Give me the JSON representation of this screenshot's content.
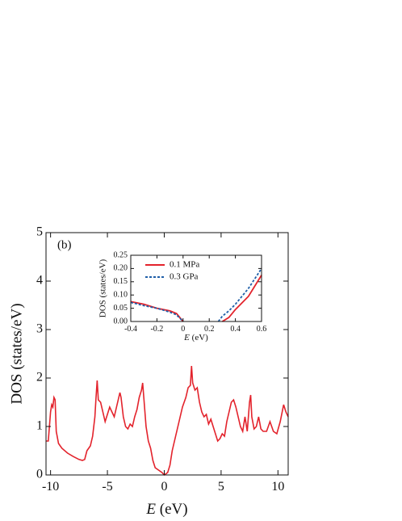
{
  "chart_data": [
    {
      "type": "line",
      "annotation": "(b)",
      "y_label": "DOS (states/eV)",
      "x_label_var": "E",
      "x_label_unit": "(eV)",
      "x": [
        -10.4,
        -10.2,
        -10.0,
        -9.9,
        -9.8,
        -9.7,
        -9.6,
        -9.5,
        -9.3,
        -9.0,
        -8.5,
        -8.0,
        -7.5,
        -7.2,
        -7.0,
        -6.8,
        -6.5,
        -6.3,
        -6.1,
        -6.0,
        -5.9,
        -5.8,
        -5.6,
        -5.4,
        -5.2,
        -5.0,
        -4.8,
        -4.6,
        -4.4,
        -4.2,
        -4.0,
        -3.9,
        -3.8,
        -3.6,
        -3.4,
        -3.2,
        -3.0,
        -2.8,
        -2.6,
        -2.4,
        -2.2,
        -2.0,
        -1.9,
        -1.8,
        -1.6,
        -1.4,
        -1.2,
        -1.0,
        -0.8,
        -0.5,
        -0.2,
        0,
        0.3,
        0.5,
        0.7,
        1.0,
        1.3,
        1.6,
        1.9,
        2.1,
        2.3,
        2.4,
        2.5,
        2.7,
        2.9,
        3.1,
        3.3,
        3.5,
        3.7,
        3.9,
        4.1,
        4.3,
        4.5,
        4.7,
        4.9,
        5.1,
        5.3,
        5.5,
        5.7,
        5.9,
        6.1,
        6.3,
        6.5,
        6.7,
        6.9,
        7.1,
        7.3,
        7.5,
        7.6,
        7.7,
        7.9,
        8.1,
        8.3,
        8.5,
        8.7,
        9.0,
        9.3,
        9.6,
        9.9,
        10.2,
        10.5,
        10.7,
        10.9
      ],
      "series": [
        {
          "color": "#e3232c",
          "linestyle": "solid",
          "values": [
            0.7,
            0.7,
            1.3,
            1.45,
            1.4,
            1.6,
            1.55,
            0.9,
            0.65,
            0.55,
            0.45,
            0.38,
            0.32,
            0.3,
            0.32,
            0.5,
            0.6,
            0.8,
            1.2,
            1.6,
            1.95,
            1.55,
            1.5,
            1.3,
            1.1,
            1.25,
            1.4,
            1.3,
            1.2,
            1.4,
            1.6,
            1.7,
            1.6,
            1.2,
            1.0,
            0.95,
            1.05,
            1.0,
            1.2,
            1.35,
            1.6,
            1.75,
            1.9,
            1.6,
            1.0,
            0.7,
            0.55,
            0.3,
            0.15,
            0.1,
            0.05,
            0,
            0.05,
            0.2,
            0.5,
            0.8,
            1.1,
            1.4,
            1.6,
            1.8,
            1.85,
            2.25,
            1.9,
            1.75,
            1.8,
            1.5,
            1.3,
            1.2,
            1.25,
            1.05,
            1.15,
            1.0,
            0.85,
            0.7,
            0.75,
            0.85,
            0.8,
            1.1,
            1.3,
            1.5,
            1.55,
            1.4,
            1.2,
            1.0,
            0.9,
            1.2,
            0.9,
            1.5,
            1.65,
            1.2,
            0.95,
            1.0,
            1.2,
            0.95,
            0.9,
            0.9,
            1.1,
            0.9,
            0.85,
            1.1,
            1.45,
            1.3,
            1.2
          ]
        }
      ],
      "xlim": [
        -10.4,
        10.9
      ],
      "xticks": [
        -10,
        -5,
        0,
        5,
        10
      ],
      "ylim": [
        0,
        5
      ],
      "yticks": [
        0,
        1,
        2,
        3,
        4,
        5
      ]
    },
    {
      "type": "line",
      "y_label": "DOS (states/eV)",
      "x_label_var": "E",
      "x_label_unit": "(eV)",
      "legend": "upper left",
      "x": [
        -0.4,
        -0.3,
        -0.2,
        -0.1,
        -0.05,
        0,
        0.1,
        0.27,
        0.3,
        0.35,
        0.4,
        0.5,
        0.6
      ],
      "series": [
        {
          "name": "0.1 MPa",
          "color": "#e3232c",
          "linestyle": "solid",
          "values": [
            0.075,
            0.065,
            0.05,
            0.04,
            0.03,
            0,
            null,
            null,
            0,
            0.015,
            0.045,
            0.095,
            0.175
          ]
        },
        {
          "name": "0.3 GPa",
          "color": "#1f5fa8",
          "linestyle": "dashed",
          "values": [
            0.072,
            0.06,
            0.05,
            0.035,
            0.025,
            0,
            null,
            0,
            0.02,
            0.04,
            0.065,
            0.125,
            0.2
          ]
        }
      ],
      "xlim": [
        -0.4,
        0.6
      ],
      "xticks": [
        -0.4,
        -0.2,
        0,
        0.2,
        0.4,
        0.6
      ],
      "ylim": [
        0,
        0.25
      ],
      "yticks": [
        {
          "value": 0,
          "label": "0.00"
        },
        {
          "value": 0.05,
          "label": "0.05"
        },
        {
          "value": 0.1,
          "label": "0.10"
        },
        {
          "value": 0.15,
          "label": "0.15"
        },
        {
          "value": 0.2,
          "label": "0.20"
        },
        {
          "value": 0.25,
          "label": "0.25"
        }
      ]
    }
  ]
}
